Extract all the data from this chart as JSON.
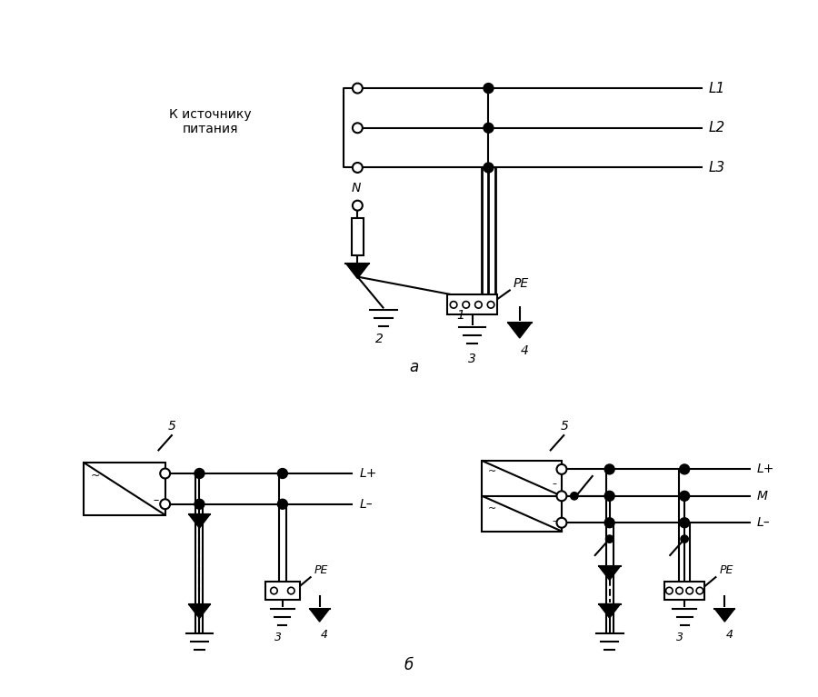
{
  "bg_color": "#ffffff",
  "line_color": "#000000",
  "fig_width": 9.0,
  "fig_height": 7.67,
  "label_a": "a",
  "label_b": "б",
  "text_source": "К источнику\nпитания",
  "labels_L": [
    "L1",
    "L2",
    "L3"
  ],
  "label_N": "N",
  "label_PE": "PE",
  "label_Lplus": "L+",
  "label_Lminus": "L–",
  "label_M": "M",
  "label_5": "5"
}
